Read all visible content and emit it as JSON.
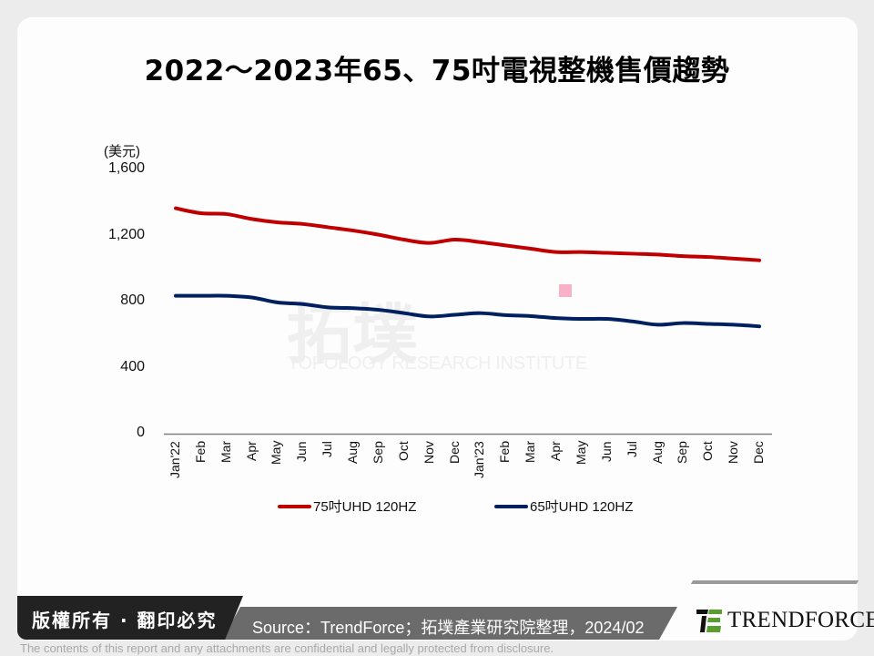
{
  "title": "2022～2023年65、75吋電視整機售價趨勢",
  "unit_label": "(美元)",
  "watermark": {
    "cn": "拓墣",
    "en": "TOPOLOGY RESEARCH INSTITUTE"
  },
  "legend": [
    {
      "label": "75吋UHD 120HZ",
      "color": "#c00000"
    },
    {
      "label": "65吋UHD 120HZ",
      "color": "#002060"
    }
  ],
  "footer": {
    "copyright": "版權所有 · 翻印必究",
    "source": "Source：TrendForce；拓墣產業研究院整理，2024/02",
    "brand": "TRENDFORCE",
    "disclaimer": "The contents of this report and any attachments are confidential and legally protected from disclosure."
  },
  "chart_data": {
    "type": "line",
    "title": "2022～2023年65、75吋電視整機售價趨勢",
    "xlabel": "",
    "ylabel": "(美元)",
    "ylim": [
      0,
      1600
    ],
    "yticks": [
      "0",
      "400",
      "800",
      "1,200",
      "1,600"
    ],
    "grid": false,
    "legend_position": "bottom",
    "categories": [
      "Jan'22",
      "Feb",
      "Mar",
      "Apr",
      "May",
      "Jun",
      "Jul",
      "Aug",
      "Sep",
      "Oct",
      "Nov",
      "Dec",
      "Jan'23",
      "Feb",
      "Mar",
      "Apr",
      "May",
      "Jun",
      "Jul",
      "Aug",
      "Sep",
      "Oct",
      "Nov",
      "Dec"
    ],
    "series": [
      {
        "name": "75吋UHD 120HZ",
        "color": "#c00000",
        "values": [
          1365,
          1335,
          1330,
          1300,
          1280,
          1270,
          1250,
          1230,
          1205,
          1175,
          1155,
          1175,
          1160,
          1140,
          1120,
          1100,
          1100,
          1095,
          1090,
          1085,
          1075,
          1070,
          1060,
          1050
        ]
      },
      {
        "name": "65吋UHD 120HZ",
        "color": "#002060",
        "values": [
          835,
          835,
          835,
          825,
          795,
          785,
          765,
          760,
          750,
          730,
          710,
          720,
          730,
          718,
          712,
          700,
          695,
          695,
          680,
          660,
          670,
          665,
          660,
          650
        ]
      }
    ]
  }
}
